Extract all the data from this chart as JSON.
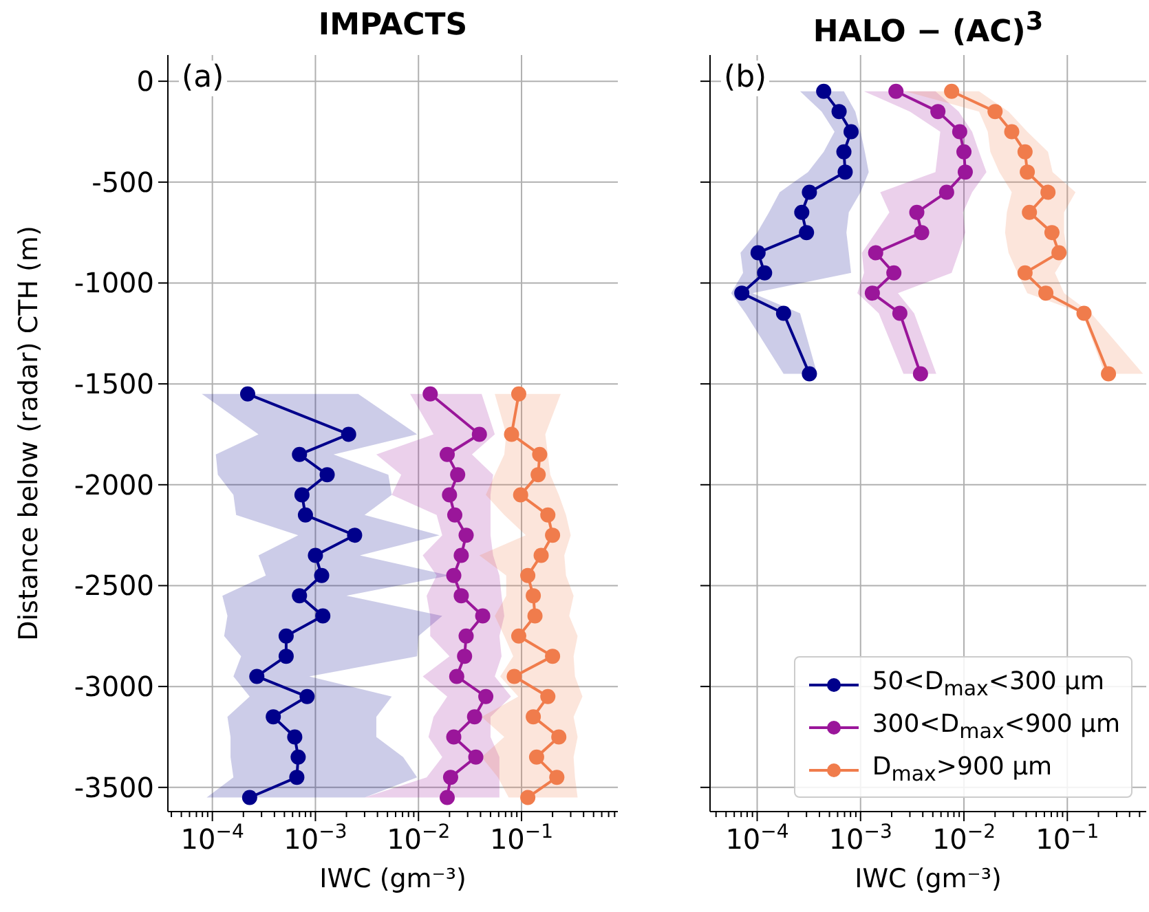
{
  "chart_data": [
    {
      "type": "line",
      "title": "IMPACTS",
      "xlabel": "IWC (gm⁻³)",
      "ylabel": "Distance below (radar) CTH (m)",
      "annotations": [
        "(a)"
      ],
      "orientation": "horizontal",
      "log": "x",
      "grid": true,
      "legend": false,
      "marker": "circle",
      "xlim": [
        3.7e-05,
        0.86
      ],
      "xticks": [
        {
          "value": 4e-05,
          "label": null
        },
        {
          "value": 5e-05,
          "label": null
        },
        {
          "value": 6e-05,
          "label": null
        },
        {
          "value": 7e-05,
          "label": null
        },
        {
          "value": 8e-05,
          "label": null
        },
        {
          "value": 9e-05,
          "label": null
        },
        {
          "value": 0.0001,
          "label": "10$^{−4}$"
        },
        {
          "value": 0.0002,
          "label": null
        },
        {
          "value": 0.0003,
          "label": null
        },
        {
          "value": 0.0004,
          "label": null
        },
        {
          "value": 0.0005,
          "label": null
        },
        {
          "value": 0.0006,
          "label": null
        },
        {
          "value": 0.0007,
          "label": null
        },
        {
          "value": 0.0008,
          "label": null
        },
        {
          "value": 0.0009,
          "label": null
        },
        {
          "value": 0.001,
          "label": "10$^{−3}$"
        },
        {
          "value": 0.002,
          "label": null
        },
        {
          "value": 0.003,
          "label": null
        },
        {
          "value": 0.004,
          "label": null
        },
        {
          "value": 0.005,
          "label": null
        },
        {
          "value": 0.006,
          "label": null
        },
        {
          "value": 0.007,
          "label": null
        },
        {
          "value": 0.008,
          "label": null
        },
        {
          "value": 0.009,
          "label": null
        },
        {
          "value": 0.01,
          "label": "10$^{−2}$"
        },
        {
          "value": 0.02,
          "label": null
        },
        {
          "value": 0.03,
          "label": null
        },
        {
          "value": 0.04,
          "label": null
        },
        {
          "value": 0.05,
          "label": null
        },
        {
          "value": 0.06,
          "label": null
        },
        {
          "value": 0.07,
          "label": null
        },
        {
          "value": 0.08,
          "label": null
        },
        {
          "value": 0.09,
          "label": null
        },
        {
          "value": 0.1,
          "label": "10$^{−1}$"
        },
        {
          "value": 0.2,
          "label": null
        },
        {
          "value": 0.3,
          "label": null
        },
        {
          "value": 0.4,
          "label": null
        },
        {
          "value": 0.5,
          "label": null
        },
        {
          "value": 0.6,
          "label": null
        },
        {
          "value": 0.7,
          "label": null
        },
        {
          "value": 0.8,
          "label": null
        }
      ],
      "ylim": [
        -3620,
        130
      ],
      "yticks": [
        0,
        -500,
        -1000,
        -1500,
        -2000,
        -2500,
        -3000,
        -3500
      ],
      "series": [
        {
          "color": "#00008b",
          "x": [
            -1550,
            -1750,
            -1850,
            -1950,
            -2050,
            -2150,
            -2250,
            -2350,
            -2450,
            -2550,
            -2650,
            -2750,
            -2850,
            -2950,
            -3050,
            -3150,
            -3250,
            -3350,
            -3450,
            -3550
          ],
          "values": [
            0.00022,
            0.0021,
            0.0007,
            0.0013,
            0.00074,
            0.0008,
            0.0024,
            0.001,
            0.00115,
            0.0007,
            0.00118,
            0.00052,
            0.00052,
            0.00027,
            0.00083,
            0.00039,
            0.00063,
            0.00068,
            0.00066,
            0.00023
          ],
          "lower": [
            7.9e-05,
            0.00028,
            0.000108,
            0.000113,
            0.00016,
            0.00017,
            0.00068,
            0.00028,
            0.00033,
            0.000125,
            0.00014,
            0.00013,
            0.00019,
            0.00016,
            0.00023,
            0.00014,
            0.00015,
            0.00015,
            0.00016,
            8.8e-05
          ],
          "upper": [
            0.0026,
            0.0097,
            0.0015,
            0.0051,
            0.0055,
            0.003,
            0.016,
            0.0027,
            0.02,
            0.002,
            0.017,
            0.01,
            0.0097,
            0.00087,
            0.0055,
            0.0039,
            0.0039,
            0.0071,
            0.0097,
            0.003
          ]
        },
        {
          "color": "#9a169a",
          "x": [
            -1550,
            -1750,
            -1850,
            -1950,
            -2050,
            -2150,
            -2250,
            -2350,
            -2450,
            -2550,
            -2650,
            -2750,
            -2850,
            -2950,
            -3050,
            -3150,
            -3250,
            -3350,
            -3450,
            -3550
          ],
          "values": [
            0.013,
            0.039,
            0.019,
            0.024,
            0.02,
            0.0225,
            0.029,
            0.026,
            0.022,
            0.026,
            0.042,
            0.029,
            0.028,
            0.0235,
            0.045,
            0.035,
            0.022,
            0.036,
            0.0205,
            0.019
          ],
          "lower": [
            0.0083,
            0.014,
            0.0039,
            0.0068,
            0.0055,
            0.015,
            0.017,
            0.011,
            0.015,
            0.012,
            0.013,
            0.013,
            0.02,
            0.011,
            0.019,
            0.014,
            0.0125,
            0.017,
            0.012,
            0.003
          ],
          "upper": [
            0.041,
            0.055,
            0.033,
            0.053,
            0.05,
            0.05,
            0.05,
            0.053,
            0.061,
            0.064,
            0.068,
            0.061,
            0.064,
            0.055,
            0.079,
            0.05,
            0.05,
            0.061,
            0.061,
            0.061
          ]
        },
        {
          "color": "#f07c4c",
          "x": [
            -1550,
            -1750,
            -1850,
            -1950,
            -2050,
            -2150,
            -2250,
            -2350,
            -2450,
            -2550,
            -2650,
            -2750,
            -2850,
            -2950,
            -3050,
            -3150,
            -3250,
            -3350,
            -3450,
            -3550
          ],
          "values": [
            0.094,
            0.08,
            0.15,
            0.145,
            0.098,
            0.18,
            0.2,
            0.155,
            0.115,
            0.13,
            0.135,
            0.094,
            0.2,
            0.085,
            0.18,
            0.13,
            0.23,
            0.14,
            0.22,
            0.115
          ],
          "lower": [
            0.055,
            0.071,
            0.068,
            0.055,
            0.045,
            0.068,
            0.11,
            0.039,
            0.071,
            0.071,
            0.055,
            0.068,
            0.083,
            0.062,
            0.093,
            0.041,
            0.068,
            0.041,
            0.059,
            0.075
          ],
          "upper": [
            0.24,
            0.17,
            0.18,
            0.19,
            0.23,
            0.27,
            0.3,
            0.26,
            0.27,
            0.32,
            0.29,
            0.35,
            0.32,
            0.33,
            0.39,
            0.32,
            0.35,
            0.32,
            0.33,
            0.35
          ]
        }
      ]
    },
    {
      "type": "line",
      "title": "HALO − (AC)$^{3}$",
      "xlabel": "IWC (gm⁻³)",
      "annotations": [
        "(b)"
      ],
      "orientation": "horizontal",
      "log": "x",
      "grid": true,
      "legend": "bottom right",
      "marker": "circle",
      "tick_labels": "x",
      "xlim": [
        3.5e-05,
        0.58
      ],
      "xticks": [
        {
          "value": 4e-05,
          "label": null
        },
        {
          "value": 5e-05,
          "label": null
        },
        {
          "value": 6e-05,
          "label": null
        },
        {
          "value": 7e-05,
          "label": null
        },
        {
          "value": 8e-05,
          "label": null
        },
        {
          "value": 9e-05,
          "label": null
        },
        {
          "value": 0.0001,
          "label": "10$^{−4}$"
        },
        {
          "value": 0.0002,
          "label": null
        },
        {
          "value": 0.0003,
          "label": null
        },
        {
          "value": 0.0004,
          "label": null
        },
        {
          "value": 0.0005,
          "label": null
        },
        {
          "value": 0.0006,
          "label": null
        },
        {
          "value": 0.0007,
          "label": null
        },
        {
          "value": 0.0008,
          "label": null
        },
        {
          "value": 0.0009,
          "label": null
        },
        {
          "value": 0.001,
          "label": "10$^{−3}$"
        },
        {
          "value": 0.002,
          "label": null
        },
        {
          "value": 0.003,
          "label": null
        },
        {
          "value": 0.004,
          "label": null
        },
        {
          "value": 0.005,
          "label": null
        },
        {
          "value": 0.006,
          "label": null
        },
        {
          "value": 0.007,
          "label": null
        },
        {
          "value": 0.008,
          "label": null
        },
        {
          "value": 0.009,
          "label": null
        },
        {
          "value": 0.01,
          "label": "10$^{−2}$"
        },
        {
          "value": 0.02,
          "label": null
        },
        {
          "value": 0.03,
          "label": null
        },
        {
          "value": 0.04,
          "label": null
        },
        {
          "value": 0.05,
          "label": null
        },
        {
          "value": 0.06,
          "label": null
        },
        {
          "value": 0.07,
          "label": null
        },
        {
          "value": 0.08,
          "label": null
        },
        {
          "value": 0.09,
          "label": null
        },
        {
          "value": 0.1,
          "label": "10$^{−1}$"
        },
        {
          "value": 0.2,
          "label": null
        },
        {
          "value": 0.3,
          "label": null
        },
        {
          "value": 0.4,
          "label": null
        },
        {
          "value": 0.5,
          "label": null
        }
      ],
      "ylim": [
        -3620,
        130
      ],
      "yticks": [
        0,
        -500,
        -1000,
        -1500,
        -2000,
        -2500,
        -3000,
        -3500
      ],
      "series": [
        {
          "name": "50<D$_{max}$<300 μm",
          "color": "#00008b",
          "x": [
            -50,
            -150,
            -250,
            -350,
            -450,
            -550,
            -650,
            -750,
            -850,
            -950,
            -1050,
            -1150,
            -1450
          ],
          "values": [
            0.00044,
            0.00062,
            0.00081,
            0.00069,
            0.00071,
            0.00032,
            0.00027,
            0.0003,
            0.000102,
            0.000118,
            7.1e-05,
            0.00018,
            0.00032
          ],
          "lower": [
            0.00026,
            0.00042,
            0.00056,
            0.00044,
            0.00031,
            0.000165,
            0.00013,
            0.0001,
            6.9e-05,
            7.3e-05,
            5.6e-05,
            7.7e-05,
            0.00018
          ],
          "upper": [
            0.00069,
            0.00089,
            0.001,
            0.0011,
            0.0012,
            0.001,
            0.00077,
            0.00073,
            0.00077,
            0.00081,
            9e-05,
            0.00026,
            0.00038
          ]
        },
        {
          "name": "300<D$_{max}$<900 μm",
          "color": "#9a169a",
          "x": [
            -50,
            -150,
            -250,
            -350,
            -450,
            -550,
            -650,
            -750,
            -850,
            -950,
            -1050,
            -1150,
            -1450
          ],
          "values": [
            0.0022,
            0.0056,
            0.0091,
            0.01,
            0.0103,
            0.0068,
            0.0035,
            0.0039,
            0.0014,
            0.0021,
            0.0013,
            0.0024,
            0.0038
          ],
          "lower": [
            0.00108,
            0.003,
            0.0059,
            0.0056,
            0.0053,
            0.00155,
            0.0019,
            0.0014,
            0.00103,
            0.00108,
            0.00093,
            0.0015,
            0.0026
          ],
          "upper": [
            0.0053,
            0.0089,
            0.012,
            0.014,
            0.0165,
            0.012,
            0.0098,
            0.0103,
            0.0089,
            0.0076,
            0.0023,
            0.0033,
            0.0054
          ]
        },
        {
          "name": "D$_{max}$>900 μm",
          "color": "#f07c4c",
          "x": [
            -50,
            -150,
            -250,
            -350,
            -450,
            -550,
            -650,
            -750,
            -850,
            -950,
            -1050,
            -1150,
            -1450
          ],
          "values": [
            0.0076,
            0.02,
            0.029,
            0.039,
            0.041,
            0.065,
            0.043,
            0.071,
            0.083,
            0.039,
            0.062,
            0.145,
            0.25
          ],
          "lower": [
            0.0027,
            0.014,
            0.017,
            0.018,
            0.022,
            0.029,
            0.026,
            0.025,
            0.027,
            0.033,
            0.041,
            0.14,
            0.23
          ],
          "upper": [
            0.014,
            0.027,
            0.041,
            0.065,
            0.072,
            0.12,
            0.093,
            0.093,
            0.1,
            0.076,
            0.093,
            0.17,
            0.54
          ]
        }
      ]
    }
  ]
}
